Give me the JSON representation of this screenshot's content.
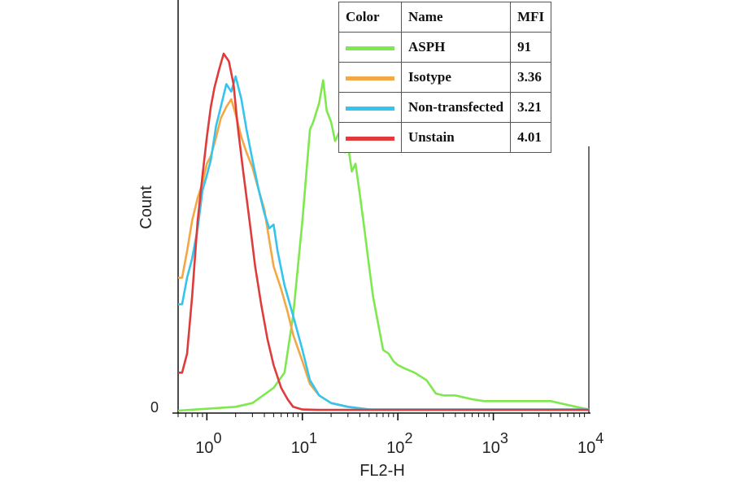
{
  "chart_data": {
    "type": "line",
    "title": "",
    "xlabel": "FL2-H",
    "ylabel": "Count",
    "xscale": "log",
    "xlim": [
      0.5,
      10000
    ],
    "ylim": [
      0,
      100
    ],
    "y_tick_labels": [
      "0"
    ],
    "x_tick_labels": [
      {
        "base": "10",
        "exp": "0",
        "value": 1
      },
      {
        "base": "10",
        "exp": "1",
        "value": 10
      },
      {
        "base": "10",
        "exp": "2",
        "value": 100
      },
      {
        "base": "10",
        "exp": "3",
        "value": 1000
      },
      {
        "base": "10",
        "exp": "4",
        "value": 10000
      }
    ],
    "series": [
      {
        "name": "ASPH",
        "color": "#7ee84f",
        "mfi": "91",
        "x": [
          0.5,
          1,
          2,
          3,
          5,
          6.5,
          8,
          10,
          12,
          13,
          15,
          16.5,
          18,
          20,
          22,
          25,
          28,
          30,
          33,
          36,
          40,
          45,
          50,
          55,
          60,
          70,
          80,
          90,
          100,
          120,
          150,
          200,
          250,
          300,
          400,
          600,
          800,
          1000,
          1500,
          2000,
          3000,
          4000,
          6000,
          10000
        ],
        "y": [
          0,
          0.5,
          1,
          2,
          6,
          10,
          25,
          50,
          74,
          76,
          81,
          87,
          79,
          76,
          71,
          74,
          68,
          70,
          63,
          65,
          57,
          47,
          38,
          30,
          25,
          16,
          15,
          13,
          12,
          11,
          10,
          8,
          4.5,
          4,
          4,
          3,
          2.5,
          2.5,
          2.5,
          2.5,
          2.5,
          2.5,
          1.5,
          0.3
        ]
      },
      {
        "name": "Isotype",
        "color": "#f2a844",
        "mfi": "3.36",
        "x": [
          0.5,
          0.55,
          0.62,
          0.7,
          0.8,
          0.9,
          1,
          1.1,
          1.25,
          1.4,
          1.6,
          1.8,
          2.0,
          2.3,
          2.6,
          3,
          3.5,
          4,
          4.5,
          5,
          6,
          7,
          8,
          10,
          12,
          15,
          20,
          30,
          50,
          10000
        ],
        "y": [
          35,
          35,
          42,
          50,
          56,
          60,
          65,
          67,
          72,
          77,
          80,
          82,
          78,
          72,
          68,
          64,
          58,
          53,
          45,
          38,
          32,
          26,
          20,
          13,
          7,
          4,
          2,
          1,
          0.3,
          0.3
        ]
      },
      {
        "name": "Non-transfected",
        "color": "#35c4ec",
        "mfi": "3.21",
        "x": [
          0.5,
          0.55,
          0.62,
          0.7,
          0.8,
          0.9,
          1,
          1.1,
          1.25,
          1.4,
          1.6,
          1.8,
          2.0,
          2.3,
          2.6,
          3,
          3.5,
          4,
          4.5,
          5,
          5.5,
          6.5,
          8,
          10,
          12,
          15,
          20,
          30,
          50,
          10000
        ],
        "y": [
          28,
          28,
          35,
          40,
          48,
          58,
          62,
          66,
          75,
          80,
          86,
          84,
          88,
          82,
          74,
          66,
          58,
          52,
          48,
          49,
          42,
          33,
          25,
          16,
          8,
          4,
          2,
          1,
          0.3,
          0.3
        ]
      },
      {
        "name": "Unstain",
        "color": "#e03b3b",
        "mfi": "4.01",
        "x": [
          0.5,
          0.55,
          0.62,
          0.7,
          0.8,
          0.9,
          1.0,
          1.1,
          1.2,
          1.35,
          1.5,
          1.7,
          1.9,
          2.1,
          2.4,
          2.8,
          3.2,
          3.7,
          4.3,
          5,
          6,
          7,
          8,
          10,
          15,
          10000
        ],
        "y": [
          10,
          10,
          15,
          30,
          50,
          62,
          72,
          80,
          85,
          90,
          94,
          92,
          86,
          75,
          63,
          50,
          38,
          28,
          19,
          12,
          6,
          3,
          1,
          0.3,
          0.2,
          0.2
        ]
      }
    ],
    "legend": {
      "position": "top-right",
      "headers": [
        "Color",
        "Name",
        "MFI"
      ],
      "rows": [
        {
          "color": "#7ee84f",
          "name": "ASPH",
          "mfi": "91"
        },
        {
          "color": "#f2a844",
          "name": "Isotype",
          "mfi": "3.36"
        },
        {
          "color": "#35c4ec",
          "name": "Non-transfected",
          "mfi": "3.21"
        },
        {
          "color": "#e03b3b",
          "name": "Unstain",
          "mfi": "4.01"
        }
      ]
    }
  }
}
